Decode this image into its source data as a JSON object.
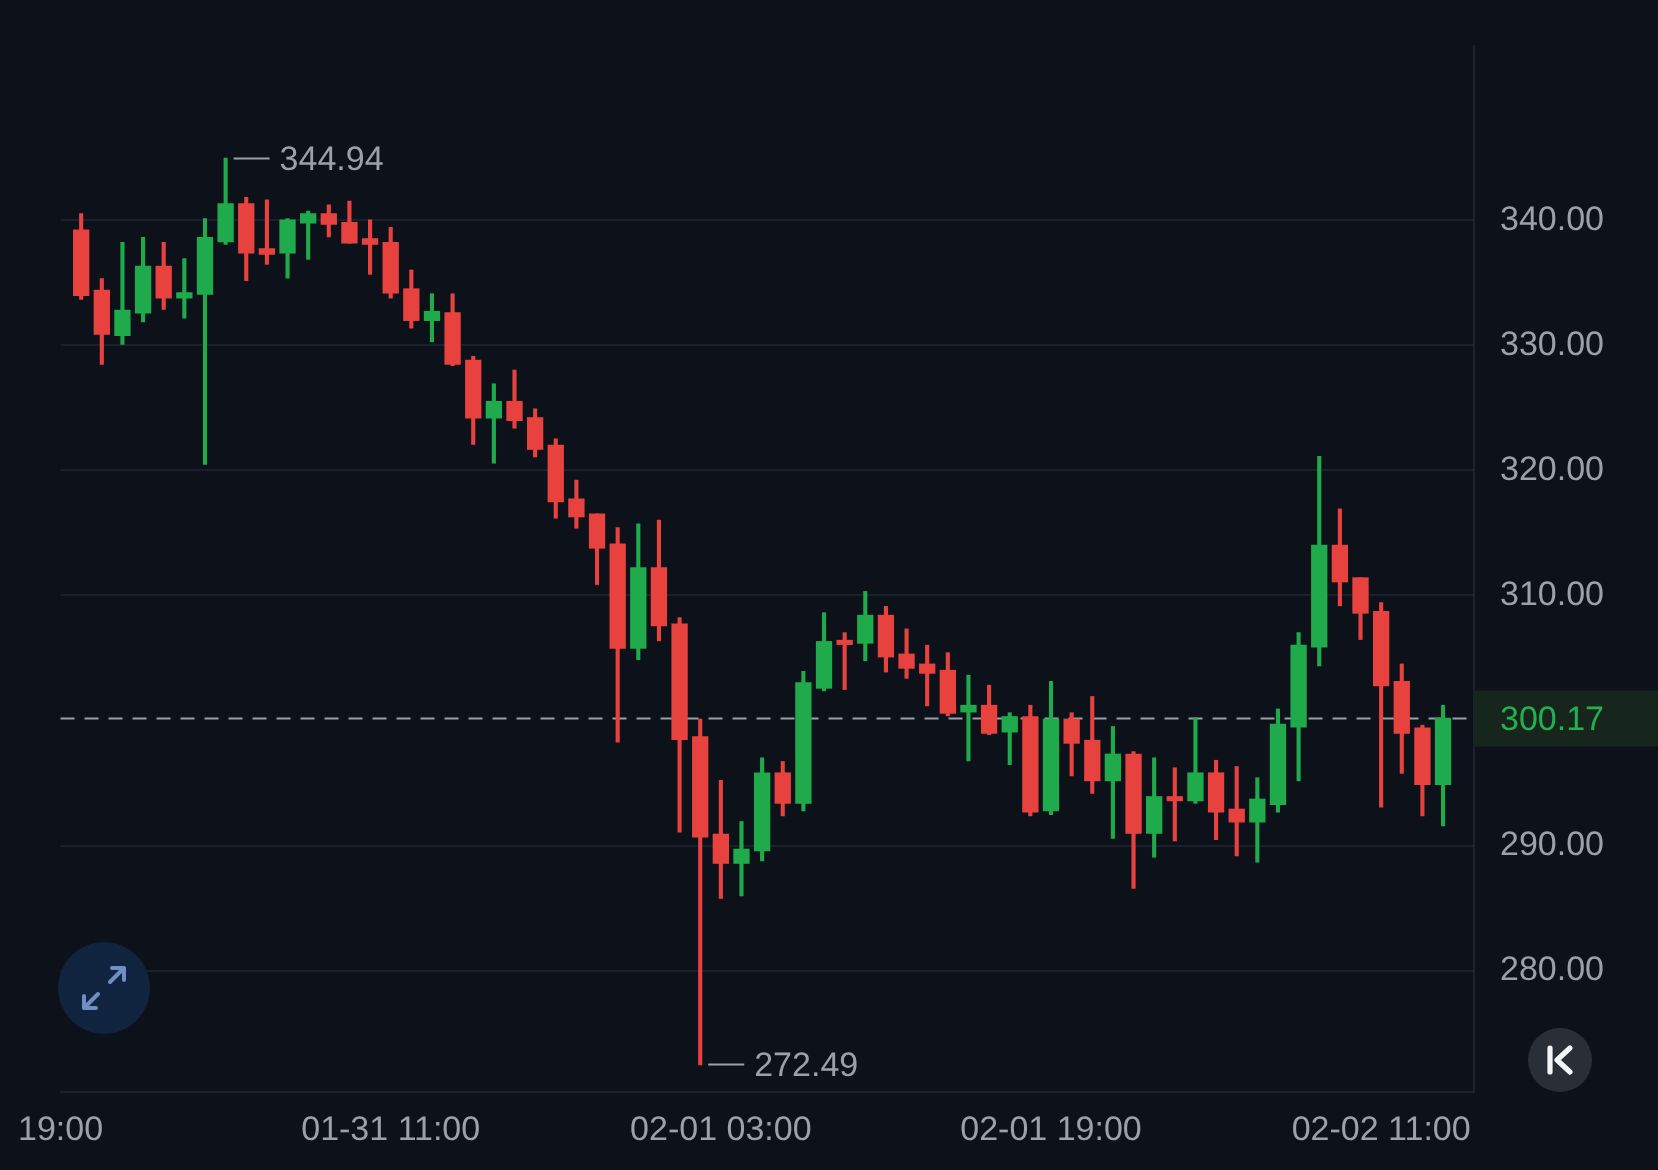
{
  "chart_data": {
    "type": "candlestick",
    "x": [
      "--01-30T20:00",
      "--01-30T21:00",
      "--01-30T22:00",
      "--01-30T23:00",
      "--01-31T00:00",
      "--01-31T01:00",
      "--01-31T02:00",
      "--01-31T03:00",
      "--01-31T04:00",
      "--01-31T05:00",
      "--01-31T06:00",
      "--01-31T07:00",
      "--01-31T08:00",
      "--01-31T09:00",
      "--01-31T10:00",
      "--01-31T11:00",
      "--01-31T12:00",
      "--01-31T13:00",
      "--01-31T14:00",
      "--01-31T15:00",
      "--01-31T16:00",
      "--01-31T17:00",
      "--01-31T18:00",
      "--01-31T19:00",
      "--01-31T20:00",
      "--01-31T21:00",
      "--01-31T22:00",
      "--01-31T23:00",
      "--02-01T00:00",
      "--02-01T01:00",
      "--02-01T02:00",
      "--02-01T03:00",
      "--02-01T04:00",
      "--02-01T05:00",
      "--02-01T06:00",
      "--02-01T07:00",
      "--02-01T08:00",
      "--02-01T09:00",
      "--02-01T10:00",
      "--02-01T11:00",
      "--02-01T12:00",
      "--02-01T13:00",
      "--02-01T14:00",
      "--02-01T15:00",
      "--02-01T16:00",
      "--02-01T17:00",
      "--02-01T18:00",
      "--02-01T19:00",
      "--02-01T20:00",
      "--02-01T21:00",
      "--02-01T22:00",
      "--02-01T23:00",
      "--02-02T00:00",
      "--02-02T01:00",
      "--02-02T02:00",
      "--02-02T03:00",
      "--02-02T04:00",
      "--02-02T05:00",
      "--02-02T06:00",
      "--02-02T07:00",
      "--02-02T08:00",
      "--02-02T09:00",
      "--02-02T10:00",
      "--02-02T11:00",
      "--02-02T12:00",
      "--02-02T13:00",
      "--02-02T14:00"
    ],
    "ohlc": [
      [
        339.2,
        340.5,
        333.7,
        334.0
      ],
      [
        334.4,
        335.3,
        328.5,
        330.9
      ],
      [
        330.8,
        338.2,
        330.1,
        332.8
      ],
      [
        332.6,
        338.6,
        331.9,
        336.3
      ],
      [
        336.3,
        338.2,
        332.9,
        333.8
      ],
      [
        333.8,
        336.9,
        332.2,
        334.2
      ],
      [
        334.1,
        340.1,
        320.5,
        338.6
      ],
      [
        338.3,
        344.94,
        338.1,
        341.3
      ],
      [
        341.3,
        341.8,
        335.2,
        337.4
      ],
      [
        337.7,
        341.6,
        336.5,
        337.3
      ],
      [
        337.4,
        340.1,
        335.4,
        340.0
      ],
      [
        339.8,
        340.7,
        336.9,
        340.5
      ],
      [
        340.5,
        341.2,
        338.7,
        339.7
      ],
      [
        339.8,
        341.5,
        338.2,
        338.2
      ],
      [
        338.5,
        340.0,
        335.7,
        338.1
      ],
      [
        338.2,
        339.4,
        333.8,
        334.2
      ],
      [
        334.5,
        336.0,
        331.4,
        332.0
      ],
      [
        332.0,
        334.1,
        330.3,
        332.7
      ],
      [
        332.6,
        334.1,
        328.4,
        328.5
      ],
      [
        328.8,
        329.1,
        322.1,
        324.2
      ],
      [
        324.2,
        326.9,
        320.6,
        325.5
      ],
      [
        325.5,
        328.0,
        323.4,
        324.0
      ],
      [
        324.2,
        324.9,
        321.1,
        321.7
      ],
      [
        322.0,
        322.5,
        316.2,
        317.5
      ],
      [
        317.7,
        319.2,
        315.4,
        316.3
      ],
      [
        316.5,
        316.5,
        310.9,
        313.8
      ],
      [
        314.1,
        315.4,
        298.3,
        305.8
      ],
      [
        305.8,
        315.7,
        304.9,
        312.2
      ],
      [
        312.2,
        316.0,
        306.4,
        307.6
      ],
      [
        307.7,
        308.2,
        291.1,
        298.5
      ],
      [
        298.7,
        300.1,
        272.49,
        290.7
      ],
      [
        290.9,
        295.2,
        285.8,
        288.6
      ],
      [
        288.6,
        291.9,
        286.0,
        289.7
      ],
      [
        289.6,
        297.0,
        288.8,
        295.8
      ],
      [
        295.8,
        296.7,
        292.4,
        293.4
      ],
      [
        293.4,
        303.9,
        292.8,
        303.0
      ],
      [
        302.6,
        308.6,
        302.4,
        306.3
      ],
      [
        306.4,
        307.0,
        302.5,
        306.1
      ],
      [
        306.2,
        310.3,
        304.8,
        308.4
      ],
      [
        308.4,
        309.1,
        303.9,
        305.1
      ],
      [
        305.3,
        307.3,
        303.4,
        304.2
      ],
      [
        304.5,
        306.0,
        301.2,
        303.8
      ],
      [
        304.0,
        305.4,
        300.4,
        300.6
      ],
      [
        300.7,
        303.6,
        296.8,
        301.2
      ],
      [
        301.2,
        302.8,
        298.9,
        299.0
      ],
      [
        299.1,
        300.6,
        296.5,
        300.3
      ],
      [
        300.3,
        301.2,
        292.4,
        292.7
      ],
      [
        292.8,
        303.1,
        292.5,
        300.1
      ],
      [
        300.1,
        300.6,
        295.6,
        298.2
      ],
      [
        298.4,
        301.9,
        294.2,
        295.2
      ],
      [
        295.2,
        299.5,
        290.6,
        297.3
      ],
      [
        297.3,
        297.5,
        286.6,
        291.0
      ],
      [
        291.0,
        297.0,
        289.1,
        293.9
      ],
      [
        293.9,
        296.2,
        290.4,
        293.6
      ],
      [
        293.6,
        300.2,
        293.4,
        295.8
      ],
      [
        295.8,
        296.8,
        290.5,
        292.7
      ],
      [
        292.9,
        296.3,
        289.2,
        291.9
      ],
      [
        291.9,
        295.4,
        288.7,
        293.7
      ],
      [
        293.3,
        300.9,
        292.7,
        299.7
      ],
      [
        299.5,
        307.0,
        295.2,
        306.0
      ],
      [
        305.9,
        321.1,
        304.4,
        314.0
      ],
      [
        314.0,
        316.9,
        309.2,
        311.1
      ],
      [
        311.4,
        311.4,
        306.5,
        308.6
      ],
      [
        308.7,
        309.4,
        293.1,
        302.8
      ],
      [
        303.1,
        304.5,
        295.8,
        299.0
      ],
      [
        299.4,
        299.6,
        292.4,
        294.9
      ],
      [
        294.9,
        301.2,
        291.6,
        300.17
      ]
    ],
    "colors": [
      "#e8423f",
      "#e8423f",
      "#1faa4b",
      "#1faa4b",
      "#e8423f",
      "#1faa4b",
      "#1faa4b",
      "#1faa4b",
      "#e8423f",
      "#e8423f",
      "#1faa4b",
      "#1faa4b",
      "#e8423f",
      "#e8423f",
      "#e8423f",
      "#e8423f",
      "#e8423f",
      "#1faa4b",
      "#e8423f",
      "#e8423f",
      "#1faa4b",
      "#e8423f",
      "#e8423f",
      "#e8423f",
      "#e8423f",
      "#e8423f",
      "#e8423f",
      "#1faa4b",
      "#e8423f",
      "#e8423f",
      "#e8423f",
      "#e8423f",
      "#1faa4b",
      "#1faa4b",
      "#e8423f",
      "#1faa4b",
      "#1faa4b",
      "#e8423f",
      "#1faa4b",
      "#e8423f",
      "#e8423f",
      "#e8423f",
      "#e8423f",
      "#1faa4b",
      "#e8423f",
      "#1faa4b",
      "#e8423f",
      "#1faa4b",
      "#e8423f",
      "#e8423f",
      "#1faa4b",
      "#e8423f",
      "#1faa4b",
      "#e8423f",
      "#1faa4b",
      "#e8423f",
      "#e8423f",
      "#1faa4b",
      "#1faa4b",
      "#1faa4b",
      "#1faa4b",
      "#e8423f",
      "#e8423f",
      "#e8423f",
      "#e8423f",
      "#e8423f",
      "#1faa4b"
    ],
    "xlim": [
      "--01-30T19:00",
      "--02-02T15:30"
    ],
    "xticks": [
      {
        "value": "--01-30T19:00",
        "label": "19:00"
      },
      {
        "value": "--01-31T11:00",
        "label": "01-31 11:00"
      },
      {
        "value": "--02-01T03:00",
        "label": "02-01 03:00"
      },
      {
        "value": "--02-01T19:00",
        "label": "02-01 19:00"
      },
      {
        "value": "--02-02T11:00",
        "label": "02-02 11:00"
      }
    ],
    "ylim": [
      270.3,
      353.9
    ],
    "yticks": [
      {
        "value": 280,
        "label": "280.00"
      },
      {
        "value": 290,
        "label": "290.00"
      },
      {
        "value": 310,
        "label": "310.00"
      },
      {
        "value": 320,
        "label": "320.00"
      },
      {
        "value": 330,
        "label": "330.00"
      },
      {
        "value": 340,
        "label": "340.00"
      }
    ],
    "grid": "y",
    "ref_lines": [
      {
        "axis": "y",
        "value": 300.17,
        "label": "300.17",
        "color": "#9aa0a8",
        "line_style": "dashed"
      }
    ],
    "annotations": [
      {
        "text": "344.94",
        "x": "--01-31T03:00",
        "y": 344.94
      },
      {
        "text": "272.49",
        "x": "--02-01T02:00",
        "y": 272.49
      }
    ]
  }
}
